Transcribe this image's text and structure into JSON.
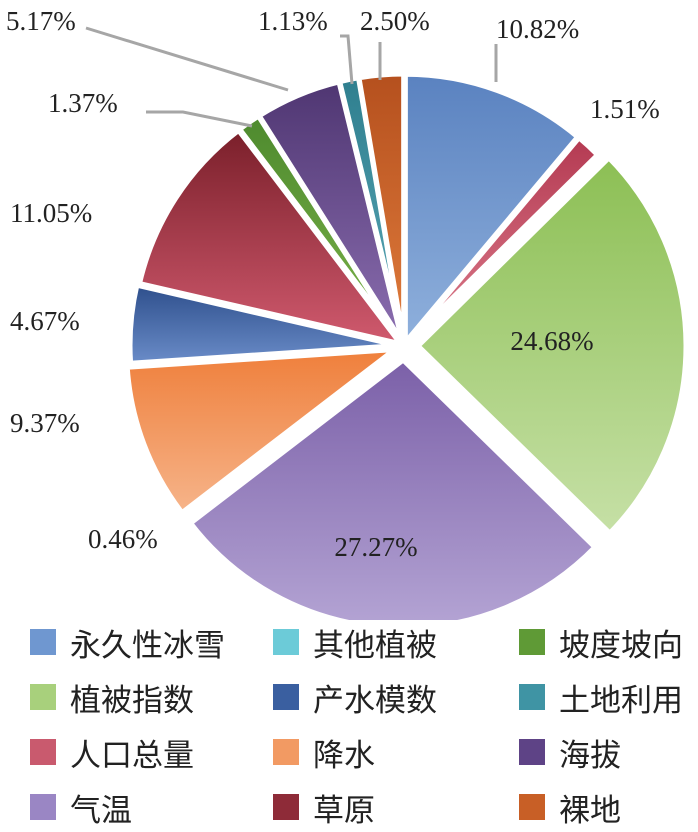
{
  "chart_data": {
    "type": "pie",
    "title": "",
    "legend_placement": "bottom",
    "slices": [
      {
        "label": "永久性冰雪",
        "value": 10.82,
        "text": "10.82%",
        "color": "#5a82c0",
        "color2": "#8fb0dc"
      },
      {
        "label": "其他植被",
        "value": 0.0,
        "text": "",
        "color": "#4bb3c5",
        "color2": "#8fd6e0"
      },
      {
        "label": "坡度坡向",
        "value": 1.37,
        "text": "1.37%",
        "color": "#4e8a2e",
        "color2": "#7bb34a"
      },
      {
        "label": "植被指数",
        "value": 24.68,
        "text": "24.68%",
        "color": "#8cbf54",
        "color2": "#c6e0a6"
      },
      {
        "label": "产水模数",
        "value": 4.67,
        "text": "4.67%",
        "color": "#2e4f8c",
        "color2": "#6a8cc8"
      },
      {
        "label": "土地利用",
        "value": 1.13,
        "text": "1.13%",
        "color": "#2f7f8f",
        "color2": "#5aa7b6"
      },
      {
        "label": "人口总量",
        "value": 1.51,
        "text": "1.51%",
        "color": "#b43a52",
        "color2": "#dc7c8c"
      },
      {
        "label": "降水",
        "value": 9.37,
        "text": "9.37%",
        "color": "#ef7f3b",
        "color2": "#f6b48a"
      },
      {
        "label": "海拔",
        "value": 5.17,
        "text": "5.17%",
        "color": "#4f3672",
        "color2": "#8b6eb0"
      },
      {
        "label": "气温",
        "value": 27.27,
        "text": "27.27%",
        "color": "#7b60a8",
        "color2": "#b4a4d4"
      },
      {
        "label": "草原",
        "value": 11.05,
        "text": "11.05%",
        "color": "#7a1f2a",
        "color2": "#d05a6e"
      },
      {
        "label": "裸地",
        "value": 2.5,
        "text": "2.50%",
        "color": "#b5501e",
        "color2": "#e07c3c"
      }
    ],
    "extra_labels": [
      "0.46%"
    ]
  },
  "legend": [
    {
      "label": "永久性冰雪",
      "color": "#6f97d0"
    },
    {
      "label": "其他植被",
      "color": "#6ccbd8"
    },
    {
      "label": "坡度坡向",
      "color": "#5f9a36"
    },
    {
      "label": "植被指数",
      "color": "#a8d07c"
    },
    {
      "label": "产水模数",
      "color": "#3a5fa0"
    },
    {
      "label": "土地利用",
      "color": "#3f94a4"
    },
    {
      "label": "人口总量",
      "color": "#c95a6e"
    },
    {
      "label": "降水",
      "color": "#f29a63"
    },
    {
      "label": "海拔",
      "color": "#5e4386"
    },
    {
      "label": "气温",
      "color": "#9a86c4"
    },
    {
      "label": "草原",
      "color": "#8e2b38"
    },
    {
      "label": "裸地",
      "color": "#c85f26"
    }
  ]
}
